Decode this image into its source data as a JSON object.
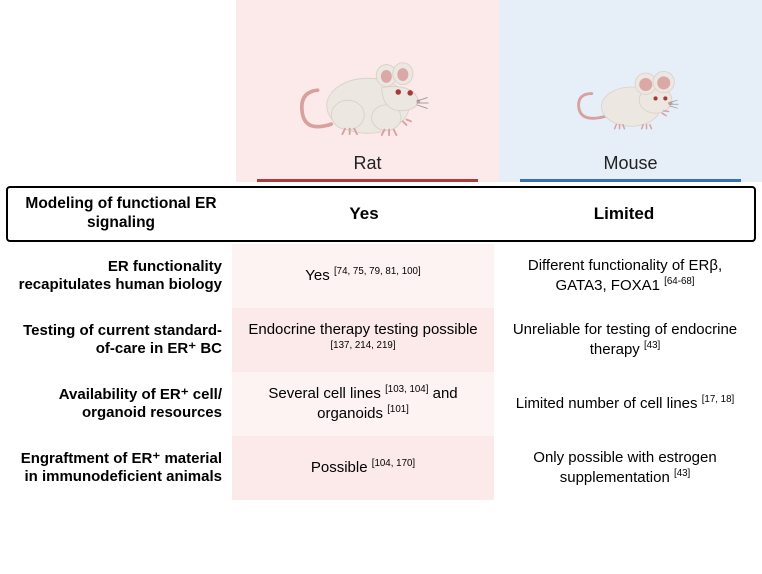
{
  "colors": {
    "rat_bg": "#fce9e9",
    "rat_bg_light": "#fdf3f3",
    "mouse_bg": "#e6eef7",
    "rat_underline": "#b33a3a",
    "mouse_underline": "#3a6fb3",
    "animal_body": "#ece7e1",
    "animal_body_dark": "#d9d2c9",
    "animal_tail": "#d9a0a0",
    "animal_eye": "#a63a3a",
    "animal_ear_inner": "#dba8a8"
  },
  "columns": {
    "rat": "Rat",
    "mouse": "Mouse"
  },
  "feature_row": {
    "label": "Modeling of functional ER signaling",
    "rat": "Yes",
    "mouse": "Limited"
  },
  "rows": [
    {
      "label": "ER functionality recapitulates human biology",
      "rat": "Yes",
      "rat_refs": "[74, 75, 79, 81, 100]",
      "mouse": "Different functionality of ERβ, GATA3, FOXA1",
      "mouse_refs": "[64-68]"
    },
    {
      "label": "Testing of current standard-of-care in ER⁺ BC",
      "rat": "Endocrine therapy testing possible",
      "rat_refs": "[137, 214, 219]",
      "mouse": "Unreliable for testing of endocrine therapy",
      "mouse_refs": "[43]"
    },
    {
      "label": "Availability of ER⁺ cell/ organoid resources",
      "rat": "Several cell lines <sup>[103, 104]</sup> and organoids",
      "rat_refs": "[101]",
      "mouse": "Limited number of cell lines",
      "mouse_refs": "[17, 18]"
    },
    {
      "label": "Engraftment of ER⁺ material in immunodeficient animals",
      "rat": "Possible",
      "rat_refs": "[104, 170]",
      "mouse": "Only possible with estrogen supplementation",
      "mouse_refs": "[43]"
    }
  ]
}
